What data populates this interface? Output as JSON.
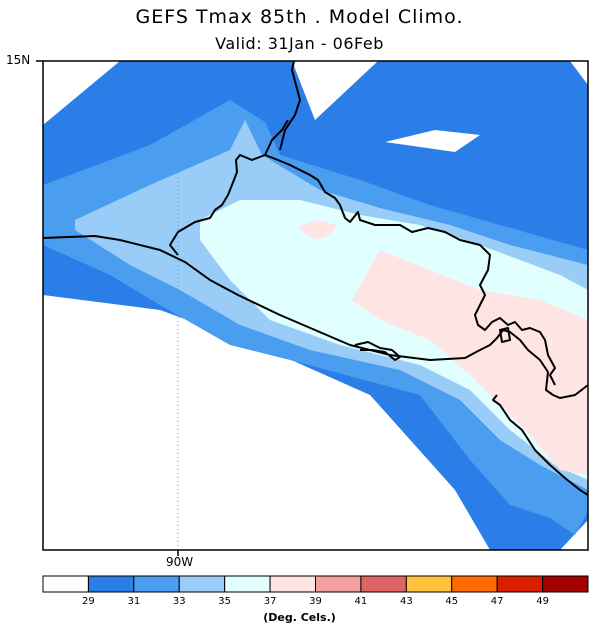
{
  "title": "GEFS Tmax 85th . Model Climo.",
  "subtitle": "Valid: 31Jan - 06Feb",
  "lat_label": "15N",
  "lon_label": "90W",
  "colorbar": {
    "units": "(Deg. Cels.)",
    "ticks": [
      "29",
      "31",
      "33",
      "35",
      "37",
      "39",
      "41",
      "43",
      "45",
      "47",
      "49"
    ],
    "colors": [
      "#ffffff",
      "#2b7ee8",
      "#4b9df0",
      "#99cdf8",
      "#e0fffe",
      "#ffe4e4",
      "#f5a0a0",
      "#e06464",
      "#ffc23c",
      "#ff6a00",
      "#dc1e00",
      "#a40000"
    ]
  },
  "palette": {
    "white": "#ffffff",
    "blue_dark": "#2b7ee8",
    "blue_mid": "#4b9df0",
    "blue_light": "#99cdf8",
    "cyan_pale": "#e0fffe",
    "pink_pale": "#ffe4e4",
    "coast": "#000000"
  }
}
